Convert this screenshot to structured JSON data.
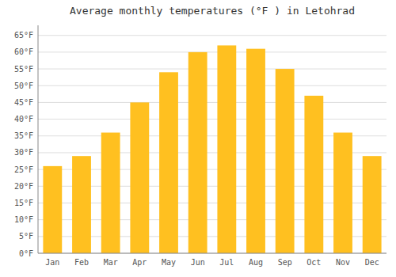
{
  "chart_data": {
    "type": "bar",
    "title": "Average monthly temperatures (°F ) in Letohrad",
    "categories": [
      "Jan",
      "Feb",
      "Mar",
      "Apr",
      "May",
      "Jun",
      "Jul",
      "Aug",
      "Sep",
      "Oct",
      "Nov",
      "Dec"
    ],
    "values": [
      26,
      29,
      36,
      45,
      54,
      60,
      62,
      61,
      55,
      47,
      36,
      29
    ],
    "color": "#FFC020",
    "ylim": [
      0,
      68
    ],
    "yticks": [
      {
        "value": 0,
        "label": "0°F"
      },
      {
        "value": 5,
        "label": "5°F"
      },
      {
        "value": 10,
        "label": "10°F"
      },
      {
        "value": 15,
        "label": "15°F"
      },
      {
        "value": 20,
        "label": "20°F"
      },
      {
        "value": 25,
        "label": "25°F"
      },
      {
        "value": 30,
        "label": "30°F"
      },
      {
        "value": 35,
        "label": "35°F"
      },
      {
        "value": 40,
        "label": "40°F"
      },
      {
        "value": 45,
        "label": "45°F"
      },
      {
        "value": 50,
        "label": "50°F"
      },
      {
        "value": 55,
        "label": "55°F"
      },
      {
        "value": 60,
        "label": "60°F"
      },
      {
        "value": 65,
        "label": "65°F"
      }
    ],
    "grid": true
  }
}
